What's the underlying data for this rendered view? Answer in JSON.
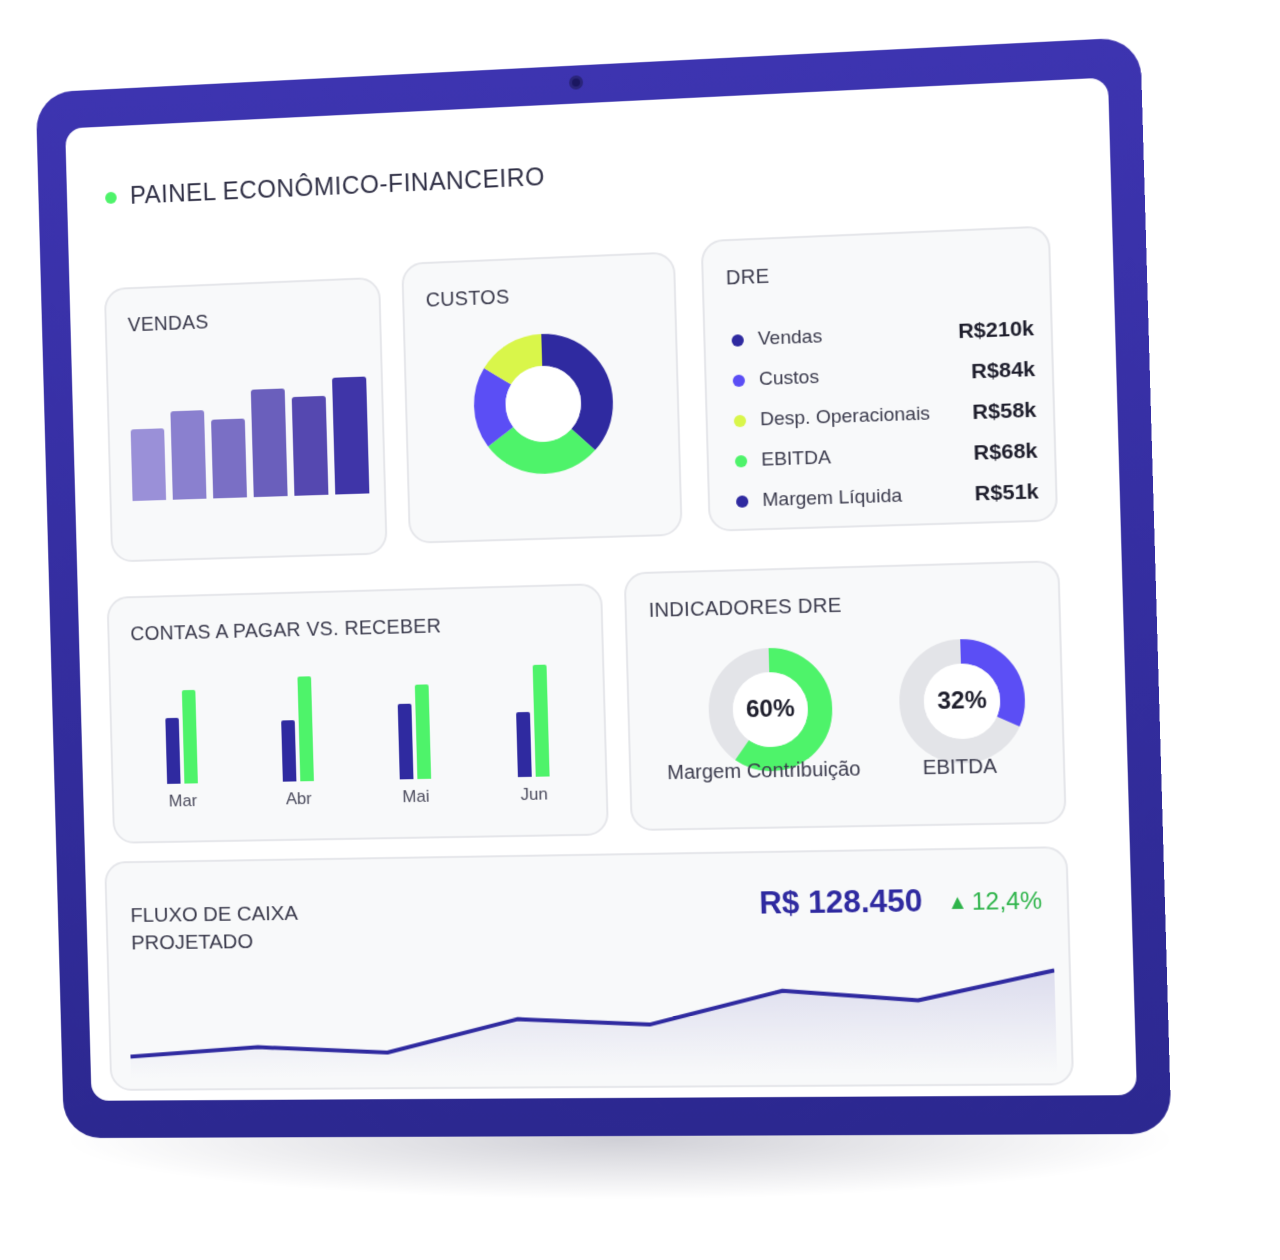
{
  "header": {
    "title": "PAINEL ECONÔMICO-FINANCEIRO"
  },
  "colors": {
    "accent": "#2f2aa0",
    "green": "#4ef36a",
    "lime": "#d9f64a",
    "violet": "#5b4ef5",
    "navy": "#2f2aa0"
  },
  "vendas": {
    "title": "VENDAS",
    "bars": [
      {
        "value": 0.62,
        "color": "#9a90d8"
      },
      {
        "value": 0.76,
        "color": "#8a80cf"
      },
      {
        "value": 0.68,
        "color": "#7a6fc5"
      },
      {
        "value": 0.92,
        "color": "#6a5fbc"
      },
      {
        "value": 0.85,
        "color": "#5548b0"
      },
      {
        "value": 1.0,
        "color": "#3f35a8"
      }
    ]
  },
  "custos": {
    "title": "CUSTOS",
    "segments": [
      {
        "value": 37,
        "color": "#2f2aa0"
      },
      {
        "value": 28,
        "color": "#4ef36a"
      },
      {
        "value": 19,
        "color": "#5b4ef5"
      },
      {
        "value": 16,
        "color": "#d9f64a"
      }
    ]
  },
  "dre": {
    "title": "DRE",
    "items": [
      {
        "label": "Vendas",
        "value": "R$210k",
        "color": "#2f2aa0"
      },
      {
        "label": "Custos",
        "value": "R$84k",
        "color": "#5b4ef5"
      },
      {
        "label": "Desp. Operacionais",
        "value": "R$58k",
        "color": "#d9f64a"
      },
      {
        "label": "EBITDA",
        "value": "R$68k",
        "color": "#4ef36a"
      },
      {
        "label": "Margem Líquida",
        "value": "R$51k",
        "color": "#2f2aa0"
      }
    ]
  },
  "contas": {
    "title": "CONTAS A PAGAR VS. RECEBER",
    "months": [
      "Mar",
      "Abr",
      "Mai",
      "Jun"
    ],
    "pagar": [
      0.6,
      0.55,
      0.68,
      0.58
    ],
    "receber": [
      0.85,
      0.95,
      0.85,
      1.0
    ]
  },
  "indicadores": {
    "title": "INDICADORES DRE",
    "gauges": [
      {
        "value": "60%",
        "fraction": 0.6,
        "label": "Margem Contribuição",
        "color": "#4ef36a"
      },
      {
        "value": "32%",
        "fraction": 0.32,
        "label": "EBITDA",
        "color": "#5b4ef5"
      }
    ]
  },
  "fluxo": {
    "title": "FLUXO DE CAIXA PROJETADO",
    "value": "R$ 128.450",
    "trend": "12,4%",
    "trend_icon": "triangle-up-icon",
    "line": [
      0.1,
      0.18,
      0.12,
      0.42,
      0.36,
      0.66,
      0.56,
      0.82
    ]
  }
}
